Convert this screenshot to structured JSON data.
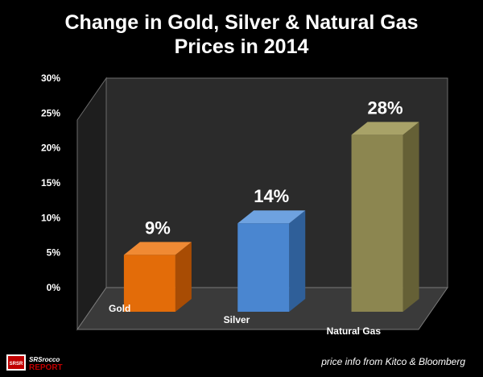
{
  "chart_data": {
    "type": "bar",
    "title_lines": [
      "Change in Gold, Silver & Natural Gas",
      "Prices in 2014"
    ],
    "categories": [
      "Gold",
      "Silver",
      "Natural Gas"
    ],
    "values": [
      9,
      14,
      28
    ],
    "value_labels": [
      "9%",
      "14%",
      "28%"
    ],
    "bar_colors": [
      "#e36c09",
      "#4a86d0",
      "#8c8650"
    ],
    "bar_side_colors": [
      "#a84c04",
      "#2f5f99",
      "#656036"
    ],
    "bar_top_colors": [
      "#f08a34",
      "#6ea2e0",
      "#a8a268"
    ],
    "y_ticks": [
      "0%",
      "5%",
      "10%",
      "15%",
      "20%",
      "25%",
      "30%"
    ],
    "ylim": [
      0,
      30
    ],
    "grid": false
  },
  "footer": {
    "source": "price info from Kitco & Bloomberg",
    "logo_top": "SRSrocco",
    "logo_bottom": "REPORT",
    "logo_badge": "SRSR"
  }
}
